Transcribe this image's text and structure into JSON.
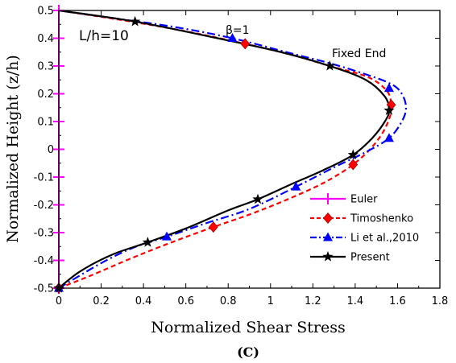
{
  "chart_data": {
    "type": "line",
    "xlabel": "Normalized Shear Stress",
    "ylabel": "Normalized Height (z/h)",
    "caption": "(C)",
    "xlim": [
      0,
      1.8
    ],
    "ylim": [
      -0.5,
      0.5
    ],
    "xticks": [
      "0",
      "0.2",
      "0.4",
      "0.6",
      "0.8",
      "1",
      "1.2",
      "1.4",
      "1.6",
      "1.8"
    ],
    "yticks": [
      "-0.5",
      "-0.4",
      "-0.3",
      "-0.2",
      "-0.1",
      "0",
      "0.1",
      "0.2",
      "0.3",
      "0.4",
      "0.5"
    ],
    "legend_position": "bottom-right",
    "annotations": {
      "ratio": "L/h=10",
      "beta": "β=1",
      "end": "Fixed End"
    },
    "series": [
      {
        "name": "Euler",
        "color": "#ff00ff",
        "dash": "solid",
        "marker": "plus",
        "points": [
          [
            0,
            -0.5
          ],
          [
            0,
            -0.4
          ],
          [
            0,
            -0.3
          ],
          [
            0,
            -0.2
          ],
          [
            0,
            -0.1
          ],
          [
            0,
            0
          ],
          [
            0,
            0.1
          ],
          [
            0,
            0.2
          ],
          [
            0,
            0.3
          ],
          [
            0,
            0.4
          ],
          [
            0,
            0.5
          ]
        ],
        "markers": [
          [
            0,
            -0.5
          ],
          [
            0,
            -0.4
          ],
          [
            0,
            -0.3
          ],
          [
            0,
            -0.2
          ],
          [
            0,
            -0.1
          ],
          [
            0,
            0
          ],
          [
            0,
            0.1
          ],
          [
            0,
            0.2
          ],
          [
            0,
            0.3
          ],
          [
            0,
            0.4
          ],
          [
            0,
            0.5
          ]
        ]
      },
      {
        "name": "Timoshenko",
        "color": "#ff0000",
        "dash": "dashed",
        "marker": "diamond",
        "points": [
          [
            0,
            -0.5
          ],
          [
            0.15,
            -0.455
          ],
          [
            0.35,
            -0.39
          ],
          [
            0.55,
            -0.33
          ],
          [
            0.73,
            -0.28
          ],
          [
            0.9,
            -0.235
          ],
          [
            1.05,
            -0.19
          ],
          [
            1.2,
            -0.14
          ],
          [
            1.3,
            -0.1
          ],
          [
            1.39,
            -0.055
          ],
          [
            1.47,
            0.0
          ],
          [
            1.53,
            0.06
          ],
          [
            1.565,
            0.12
          ],
          [
            1.57,
            0.16
          ],
          [
            1.55,
            0.21
          ],
          [
            1.46,
            0.26
          ],
          [
            1.28,
            0.3
          ],
          [
            1.1,
            0.34
          ],
          [
            0.88,
            0.38
          ],
          [
            0.6,
            0.425
          ],
          [
            0.3,
            0.465
          ],
          [
            0,
            0.5
          ]
        ],
        "markers": [
          [
            0,
            -0.5
          ],
          [
            0.73,
            -0.28
          ],
          [
            1.39,
            -0.055
          ],
          [
            1.57,
            0.16
          ],
          [
            0.88,
            0.38
          ]
        ]
      },
      {
        "name": "Li et al.,2010",
        "color": "#0000ff",
        "dash": "dashdot",
        "marker": "triangle",
        "points": [
          [
            0,
            -0.5
          ],
          [
            0.2,
            -0.41
          ],
          [
            0.35,
            -0.355
          ],
          [
            0.51,
            -0.315
          ],
          [
            0.7,
            -0.265
          ],
          [
            0.9,
            -0.215
          ],
          [
            1.12,
            -0.135
          ],
          [
            1.3,
            -0.065
          ],
          [
            1.45,
            -0.01
          ],
          [
            1.56,
            0.04
          ],
          [
            1.62,
            0.1
          ],
          [
            1.64,
            0.15
          ],
          [
            1.62,
            0.2
          ],
          [
            1.57,
            0.235
          ],
          [
            1.45,
            0.27
          ],
          [
            1.28,
            0.31
          ],
          [
            1.1,
            0.345
          ],
          [
            0.82,
            0.4
          ],
          [
            0.55,
            0.44
          ],
          [
            0.28,
            0.47
          ],
          [
            0,
            0.5
          ]
        ],
        "markers": [
          [
            0,
            -0.5
          ],
          [
            0.51,
            -0.315
          ],
          [
            1.12,
            -0.135
          ],
          [
            1.56,
            0.04
          ],
          [
            1.56,
            0.22
          ],
          [
            0.82,
            0.4
          ]
        ]
      },
      {
        "name": "Present",
        "color": "#000000",
        "dash": "solid",
        "marker": "star",
        "points": [
          [
            0,
            -0.5
          ],
          [
            0.1,
            -0.44
          ],
          [
            0.25,
            -0.38
          ],
          [
            0.42,
            -0.335
          ],
          [
            0.6,
            -0.285
          ],
          [
            0.8,
            -0.22
          ],
          [
            0.94,
            -0.18
          ],
          [
            1.1,
            -0.125
          ],
          [
            1.25,
            -0.075
          ],
          [
            1.39,
            -0.02
          ],
          [
            1.48,
            0.04
          ],
          [
            1.54,
            0.1
          ],
          [
            1.56,
            0.14
          ],
          [
            1.54,
            0.19
          ],
          [
            1.45,
            0.25
          ],
          [
            1.28,
            0.3
          ],
          [
            1.05,
            0.35
          ],
          [
            0.75,
            0.4
          ],
          [
            0.36,
            0.46
          ],
          [
            0,
            0.5
          ]
        ],
        "markers": [
          [
            0,
            -0.5
          ],
          [
            0.42,
            -0.335
          ],
          [
            0.94,
            -0.18
          ],
          [
            1.39,
            -0.02
          ],
          [
            1.56,
            0.14
          ],
          [
            1.28,
            0.3
          ],
          [
            0.36,
            0.46
          ]
        ]
      }
    ]
  }
}
